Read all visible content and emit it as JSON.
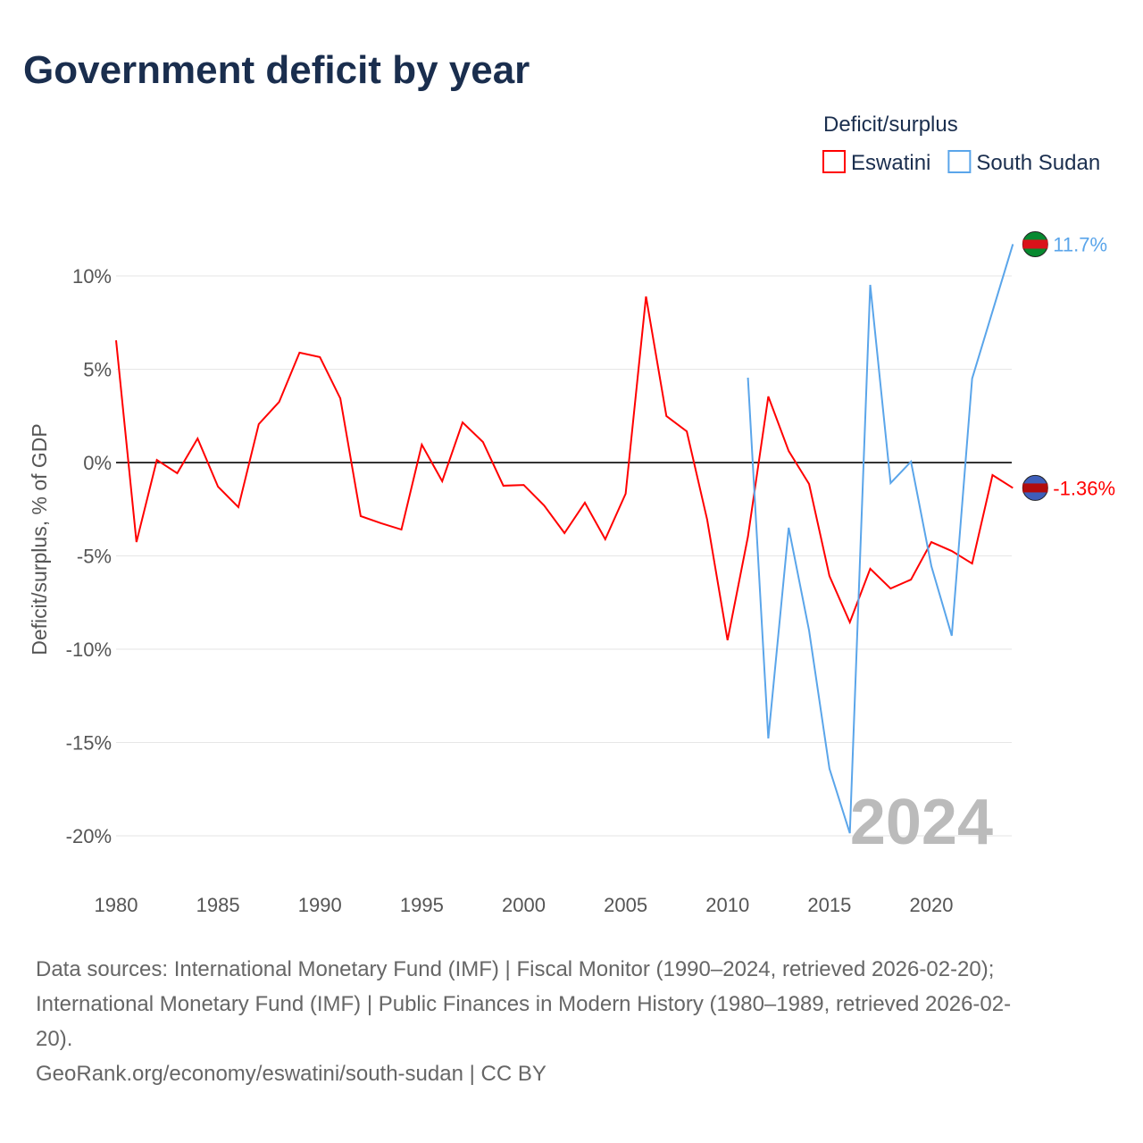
{
  "chart_data": {
    "type": "line",
    "title": "Government deficit by year",
    "ylabel": "Deficit/surplus, % of GDP",
    "xlabel": "",
    "legend_title": "Deficit/surplus",
    "legend_position": "top-right",
    "ylim": [
      -21,
      12.5
    ],
    "xlim": [
      1980,
      2024
    ],
    "yticks": [
      10,
      5,
      0,
      -5,
      -10,
      -15,
      -20
    ],
    "ytick_labels": [
      "10%",
      "5%",
      "0%",
      "-5%",
      "-10%",
      "-15%",
      "-20%"
    ],
    "xticks": [
      1980,
      1985,
      1990,
      1995,
      2000,
      2005,
      2010,
      2015,
      2020
    ],
    "xtick_labels": [
      "1980",
      "1985",
      "1990",
      "1995",
      "2000",
      "2005",
      "2010",
      "2015",
      "2020"
    ],
    "year_watermark": "2024",
    "series": [
      {
        "name": "Eswatini",
        "color": "#ff0000",
        "end_label": "-1.36%",
        "x": [
          1980,
          1981,
          1982,
          1983,
          1984,
          1985,
          1986,
          1987,
          1988,
          1989,
          1990,
          1991,
          1992,
          1993,
          1994,
          1995,
          1996,
          1997,
          1998,
          1999,
          2000,
          2001,
          2002,
          2003,
          2004,
          2005,
          2006,
          2007,
          2008,
          2009,
          2010,
          2011,
          2012,
          2013,
          2014,
          2015,
          2016,
          2017,
          2018,
          2019,
          2020,
          2021,
          2022,
          2023,
          2024
        ],
        "values": [
          6.55,
          -4.26,
          0.14,
          -0.57,
          1.29,
          -1.29,
          -2.39,
          2.06,
          3.25,
          5.89,
          5.65,
          3.44,
          -2.87,
          -3.25,
          -3.59,
          0.96,
          -1.0,
          2.15,
          1.1,
          -1.24,
          -1.2,
          -2.3,
          -3.78,
          -2.15,
          -4.11,
          -1.67,
          8.9,
          2.49,
          1.67,
          -3.06,
          -9.52,
          -3.97,
          3.54,
          0.62,
          -1.15,
          -6.08,
          -8.56,
          -5.69,
          -6.75,
          -6.27,
          -4.26,
          -4.74,
          -5.41,
          -0.67,
          -1.36
        ]
      },
      {
        "name": "South Sudan",
        "color": "#5aa5ea",
        "end_label": "11.7%",
        "x": [
          2011,
          2012,
          2013,
          2014,
          2015,
          2016,
          2017,
          2018,
          2019,
          2020,
          2021,
          2022,
          2023,
          2024
        ],
        "values": [
          4.55,
          -14.78,
          -3.49,
          -9.0,
          -16.4,
          -19.86,
          9.52,
          -1.1,
          0.05,
          -5.55,
          -9.28,
          4.5,
          8.1,
          11.7
        ]
      }
    ]
  },
  "footer": {
    "line1": "Data sources: International Monetary Fund (IMF) | Fiscal Monitor (1990–2024, retrieved 2026-02-20);",
    "line2": "International Monetary Fund (IMF) | Public Finances in Modern History (1980–1989, retrieved 2026-02-",
    "line3": "20).",
    "line4": "GeoRank.org/economy/eswatini/south-sudan | CC BY"
  }
}
